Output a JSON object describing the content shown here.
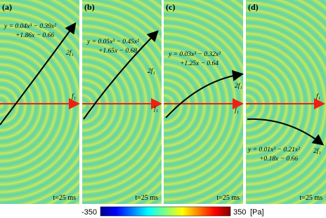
{
  "panels": [
    {
      "label": "(a)",
      "equation": [
        "y = 0.04x³ − 0.39x²",
        "+1.86x − 0.66"
      ],
      "curve_label": "2f₁",
      "line_label": "f₁",
      "time": "t=25 ms"
    },
    {
      "label": "(b)",
      "equation": [
        "y = 0.05x³ − 0.45x²",
        "+1.65x − 0.68"
      ],
      "curve_label": "2f₁",
      "line_label": "f₁",
      "time": "t=25 ms"
    },
    {
      "label": "(c)",
      "equation": [
        "y = 0.03x³ − 0.32x²",
        "+1.25x − 0.64"
      ],
      "curve_label": "2f₁",
      "line_label": "f₁",
      "time": "t=25 ms"
    },
    {
      "label": "(d)",
      "equation": [
        "y = 0.01x³ − 0.21x²",
        "+0.18x − 0.66"
      ],
      "curve_label": "2f₁",
      "line_label": "f₁",
      "time": "t=25 ms"
    }
  ],
  "colorbar": {
    "min": "-350",
    "max": "350",
    "unit": "[Pa]"
  }
}
